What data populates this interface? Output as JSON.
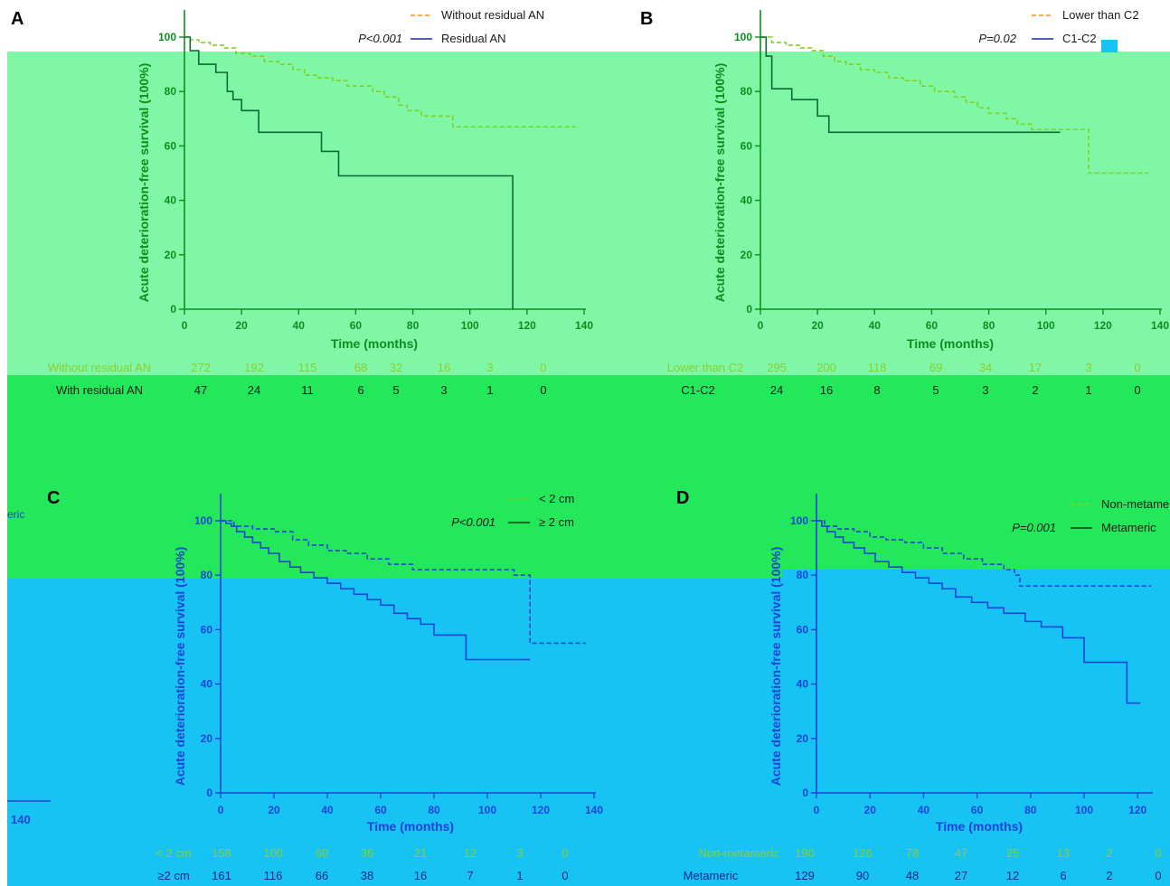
{
  "overlay_colors": {
    "green_light": "#80f7a6",
    "green": "#22e85a",
    "blue": "#16c3f2"
  },
  "panels": [
    {
      "id": "A",
      "label": "A",
      "theme": "green_light",
      "p_value": "P<0.001",
      "ylabel": "Acute deterioration-free survival (100%)",
      "xlabel": "Time (months)",
      "legend": [
        "Without residual AN",
        "Residual AN"
      ],
      "risk_table": [
        {
          "name": "Without residual AN",
          "counts": [
            "272",
            "192",
            "115",
            "68",
            "32",
            "16",
            "3",
            "0"
          ]
        },
        {
          "name": "With residual AN",
          "counts": [
            "47",
            "24",
            "11",
            "6",
            "5",
            "3",
            "1",
            "0"
          ]
        }
      ]
    },
    {
      "id": "B",
      "label": "B",
      "theme": "green_light",
      "p_value": "P=0.02",
      "ylabel": "Acute deterioration-free survival (100%)",
      "xlabel": "Time (months)",
      "legend": [
        "Lower than C2",
        "C1-C2"
      ],
      "risk_table": [
        {
          "name": "Lower than C2",
          "counts": [
            "295",
            "200",
            "118",
            "69",
            "34",
            "17",
            "3",
            "0"
          ]
        },
        {
          "name": "C1-C2",
          "counts": [
            "24",
            "16",
            "8",
            "5",
            "3",
            "2",
            "1",
            "0"
          ]
        }
      ]
    },
    {
      "id": "C",
      "label": "C",
      "theme": "blue",
      "p_value": "P<0.001",
      "ylabel": "Acute deterioration-free survival (100%)",
      "xlabel": "Time (months)",
      "legend": [
        "< 2 cm",
        "≥ 2 cm"
      ],
      "risk_table": [
        {
          "name": "< 2 cm",
          "counts": [
            "158",
            "100",
            "60",
            "36",
            "21",
            "12",
            "3",
            "0"
          ]
        },
        {
          "name": "≥2 cm",
          "counts": [
            "161",
            "116",
            "66",
            "38",
            "16",
            "7",
            "1",
            "0"
          ]
        }
      ]
    },
    {
      "id": "D",
      "label": "D",
      "theme": "blue",
      "p_value": "P=0.001",
      "ylabel": "Acute deterioration-free survival (100%)",
      "xlabel": "Time (months)",
      "legend": [
        "Non-metameric",
        "Metameric"
      ],
      "risk_table": [
        {
          "name": "Non-metameric",
          "counts": [
            "190",
            "126",
            "78",
            "47",
            "25",
            "13",
            "2",
            "0"
          ]
        },
        {
          "name": "Metameric",
          "counts": [
            "129",
            "90",
            "48",
            "27",
            "12",
            "6",
            "2",
            "0"
          ]
        }
      ]
    }
  ],
  "side_fragments": [
    "eric",
    "140"
  ],
  "chart_data": [
    {
      "type": "line",
      "panel": "A",
      "xlabel": "Time (months)",
      "ylabel": "Acute deterioration-free survival (100%)",
      "xlim": [
        0,
        140
      ],
      "ylim": [
        0,
        100
      ],
      "xticks": [
        0,
        20,
        40,
        60,
        80,
        100,
        120,
        140
      ],
      "yticks": [
        0,
        20,
        40,
        60,
        80,
        100
      ],
      "series": [
        {
          "name": "Without residual AN",
          "style": "dashed",
          "x": [
            0,
            2,
            5,
            9,
            14,
            18,
            23,
            28,
            33,
            38,
            42,
            47,
            52,
            57,
            66,
            70,
            75,
            78,
            83,
            94,
            137
          ],
          "y": [
            100,
            99,
            98,
            97,
            96,
            94,
            93,
            91,
            90,
            88,
            86,
            85,
            84,
            82,
            80,
            78,
            75,
            73,
            71,
            67,
            67
          ]
        },
        {
          "name": "Residual AN",
          "style": "solid",
          "x": [
            0,
            2,
            5,
            11,
            15,
            17,
            20,
            26,
            48,
            54,
            115,
            115
          ],
          "y": [
            100,
            95,
            90,
            87,
            80,
            77,
            73,
            65,
            58,
            49,
            49,
            0
          ]
        }
      ]
    },
    {
      "type": "line",
      "panel": "B",
      "xlabel": "Time (months)",
      "ylabel": "Acute deterioration-free survival (100%)",
      "xlim": [
        0,
        140
      ],
      "ylim": [
        0,
        100
      ],
      "xticks": [
        0,
        20,
        40,
        60,
        80,
        100,
        120,
        140
      ],
      "yticks": [
        0,
        20,
        40,
        60,
        80,
        100
      ],
      "series": [
        {
          "name": "Lower than C2",
          "style": "dashed",
          "x": [
            0,
            4,
            9,
            14,
            18,
            22,
            26,
            30,
            35,
            40,
            45,
            50,
            56,
            61,
            68,
            72,
            76,
            80,
            86,
            90,
            95,
            115,
            136
          ],
          "y": [
            100,
            98,
            97,
            96,
            95,
            93,
            91,
            90,
            88,
            87,
            85,
            84,
            82,
            80,
            78,
            76,
            74,
            72,
            70,
            68,
            66,
            50,
            50
          ]
        },
        {
          "name": "C1-C2",
          "style": "solid",
          "x": [
            0,
            2,
            4,
            11,
            20,
            24,
            105
          ],
          "y": [
            100,
            93,
            81,
            77,
            71,
            65,
            65
          ]
        }
      ]
    },
    {
      "type": "line",
      "panel": "C",
      "xlabel": "Time (months)",
      "ylabel": "Acute deterioration-free survival (100%)",
      "xlim": [
        0,
        140
      ],
      "ylim": [
        0,
        100
      ],
      "xticks": [
        0,
        20,
        40,
        60,
        80,
        100,
        120,
        140
      ],
      "yticks": [
        0,
        20,
        40,
        60,
        80,
        100
      ],
      "series": [
        {
          "name": "< 2 cm",
          "style": "dashed",
          "x": [
            0,
            5,
            12,
            20,
            27,
            33,
            40,
            47,
            55,
            63,
            72,
            110,
            116,
            137
          ],
          "y": [
            100,
            98,
            97,
            96,
            93,
            91,
            89,
            88,
            86,
            84,
            82,
            80,
            55,
            55
          ]
        },
        {
          "name": "≥ 2 cm",
          "style": "solid",
          "x": [
            0,
            2,
            4,
            6,
            9,
            12,
            15,
            18,
            22,
            26,
            30,
            35,
            40,
            45,
            50,
            55,
            60,
            65,
            70,
            75,
            80,
            92,
            116
          ],
          "y": [
            100,
            99,
            98,
            96,
            94,
            92,
            90,
            88,
            85,
            83,
            81,
            79,
            77,
            75,
            73,
            71,
            69,
            66,
            64,
            62,
            58,
            49,
            49
          ]
        }
      ]
    },
    {
      "type": "line",
      "panel": "D",
      "xlabel": "Time (months)",
      "ylabel": "Acute deterioration-free survival (100%)",
      "xlim": [
        0,
        125
      ],
      "ylim": [
        0,
        100
      ],
      "xticks": [
        0,
        20,
        40,
        60,
        80,
        100,
        120
      ],
      "yticks": [
        0,
        20,
        40,
        60,
        80,
        100
      ],
      "series": [
        {
          "name": "Non-metameric",
          "style": "dashed",
          "x": [
            0,
            3,
            8,
            14,
            20,
            26,
            33,
            40,
            47,
            55,
            62,
            70,
            74,
            76,
            125
          ],
          "y": [
            100,
            98,
            97,
            96,
            94,
            93,
            92,
            90,
            88,
            86,
            84,
            82,
            80,
            76,
            76
          ]
        },
        {
          "name": "Metameric",
          "style": "solid",
          "x": [
            0,
            2,
            4,
            7,
            10,
            14,
            18,
            22,
            27,
            32,
            37,
            42,
            47,
            52,
            58,
            64,
            70,
            78,
            84,
            92,
            100,
            116,
            121
          ],
          "y": [
            100,
            98,
            96,
            94,
            92,
            90,
            88,
            85,
            83,
            81,
            79,
            77,
            75,
            72,
            70,
            68,
            66,
            63,
            61,
            57,
            48,
            33,
            33
          ]
        }
      ]
    }
  ]
}
